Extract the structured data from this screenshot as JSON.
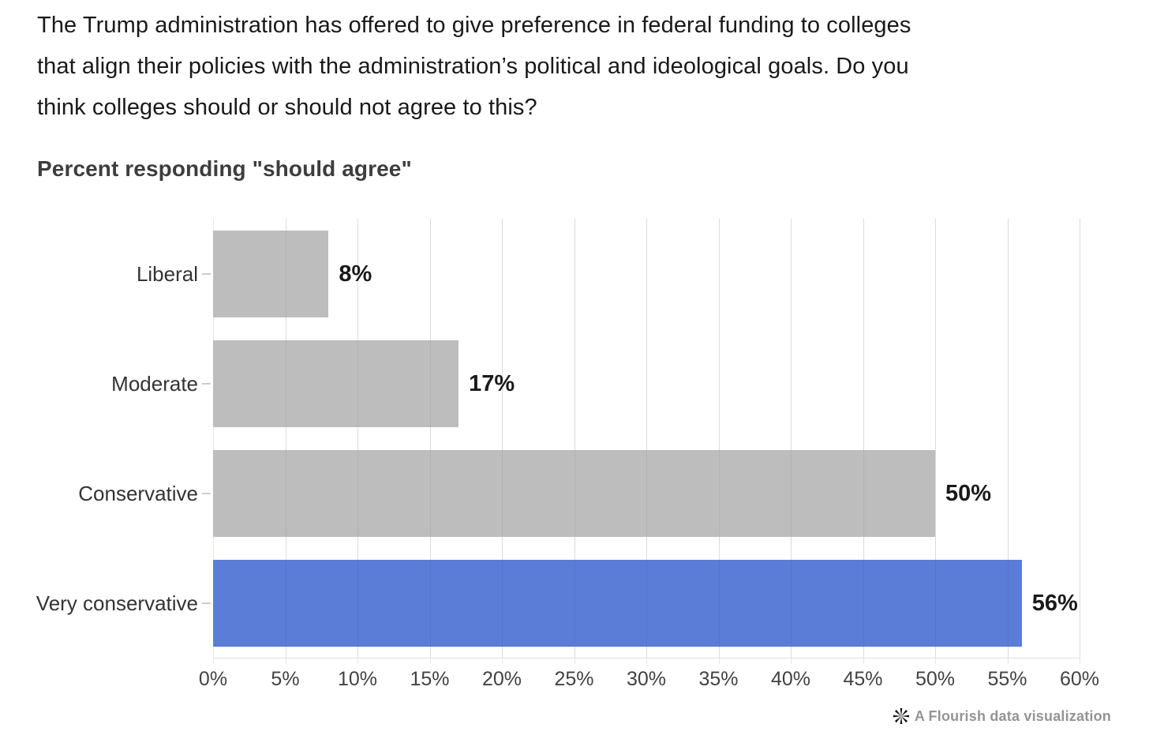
{
  "question": {
    "lines": [
      "The Trump administration has offered to give preference in federal funding to colleges",
      "that align their policies with the administration’s political and ideological goals. Do you",
      "think colleges should or should not agree to this?"
    ]
  },
  "subtitle": "Percent responding \"should agree\"",
  "chart_data": {
    "type": "bar",
    "orientation": "horizontal",
    "title": "Percent responding \"should agree\"",
    "categories": [
      "Liberal",
      "Moderate",
      "Conservative",
      "Very conservative"
    ],
    "values": [
      8,
      17,
      50,
      56
    ],
    "value_labels": [
      "8%",
      "17%",
      "50%",
      "56%"
    ],
    "bar_colors": [
      "#bdbdbd",
      "#bdbdbd",
      "#bdbdbd",
      "#5b7dd8"
    ],
    "default_bar_color": "#bdbdbd",
    "highlight_bar_color": "#5b7dd8",
    "xlabel": "",
    "ylabel": "",
    "xlim": [
      0,
      60
    ],
    "x_tick_labels": [
      "0%",
      "5%",
      "10%",
      "15%",
      "20%",
      "25%",
      "30%",
      "35%",
      "40%",
      "45%",
      "50%",
      "55%",
      "60%"
    ],
    "grid": true,
    "gridline_color": "#e7e7e7",
    "legend_position": "none"
  },
  "footer": {
    "credit": "A Flourish data visualization",
    "icon": "flourish-asterisk-icon"
  }
}
